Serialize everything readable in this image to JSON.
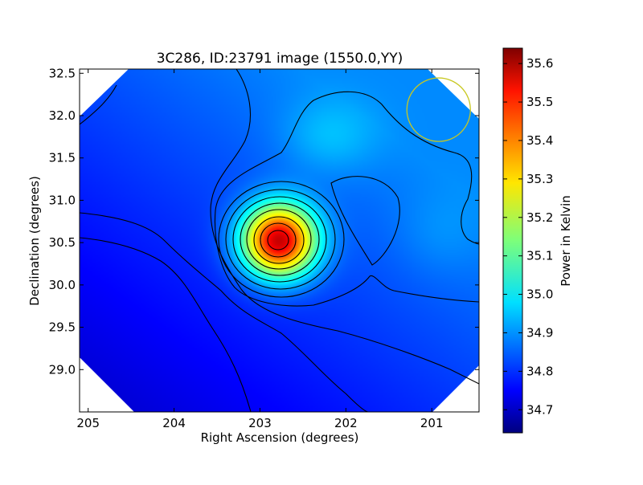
{
  "chart_data": {
    "type": "heatmap",
    "title": "3C286, ID:23791 image (1550.0,YY)",
    "xlabel": "Right Ascension (degrees)",
    "ylabel": "Declination (degrees)",
    "colorbar_label": "Power in Kelvin",
    "xlim": [
      205.1,
      200.45
    ],
    "ylim": [
      28.5,
      32.55
    ],
    "x_ticks": [
      205,
      204,
      203,
      202,
      201
    ],
    "y_ticks": [
      29.0,
      29.5,
      30.0,
      30.5,
      31.0,
      31.5,
      32.0,
      32.5
    ],
    "colorbar_range": [
      34.64,
      35.64
    ],
    "colorbar_ticks": [
      34.7,
      34.8,
      34.9,
      35.0,
      35.1,
      35.2,
      35.3,
      35.4,
      35.5,
      35.6
    ],
    "colormap": "jet",
    "peak": {
      "ra": 202.78,
      "dec": 30.52,
      "value": 35.64
    },
    "secondary_max": {
      "ra": 202.2,
      "dec": 31.75,
      "value": 35.0
    },
    "beam_circle": {
      "ra": 200.92,
      "dec": 32.07,
      "radius_deg": 0.37,
      "color": "#c8c820"
    },
    "grid": false,
    "legend": "none"
  }
}
